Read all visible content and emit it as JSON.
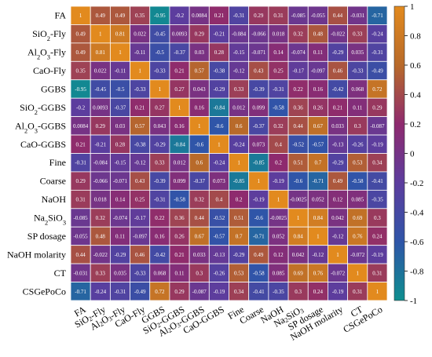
{
  "chart_data": {
    "type": "heatmap",
    "rows": [
      "FA",
      "SiO₂-Fly",
      "Al₂O₃-Fly",
      "CaO-Fly",
      "GGBS",
      "SiO₂-GGBS",
      "Al₂O₃-GGBS",
      "CaO-GGBS",
      "Fine",
      "Coarse",
      "NaOH",
      "Na₂SiO₃",
      "SP dosage",
      "NaOH molarity",
      "CT",
      "CSGePoCo"
    ],
    "columns": [
      "FA",
      "SiO₂-Fly",
      "Al₂O₃-Fly",
      "CaO-Fly",
      "GGBS",
      "SiO₂-GGBS",
      "Al₂O₃-GGBS",
      "CaO-GGBS",
      "Fine",
      "Coarse",
      "NaOH",
      "Na₂SiO₃",
      "SP dosage",
      "NaOH molarity",
      "CT",
      "CSGePoCo"
    ],
    "values": [
      [
        "1",
        "0.49",
        "0.49",
        "0.35",
        "-0.95",
        "-0.2",
        "0.0084",
        "0.21",
        "-0.31",
        "0.29",
        "0.31",
        "-0.085",
        "-0.055",
        "0.44",
        "-0.031",
        "-0.71"
      ],
      [
        "0.49",
        "1",
        "0.81",
        "0.022",
        "-0.45",
        "0.0093",
        "0.29",
        "-0.21",
        "-0.084",
        "-0.066",
        "0.018",
        "0.32",
        "0.48",
        "-0.022",
        "0.33",
        "-0.24"
      ],
      [
        "0.49",
        "0.81",
        "1",
        "-0.11",
        "-0.5",
        "-0.37",
        "0.03",
        "0.28",
        "-0.15",
        "-0.071",
        "0.14",
        "-0.074",
        "0.11",
        "-0.29",
        "0.035",
        "-0.31"
      ],
      [
        "0.35",
        "0.022",
        "-0.11",
        "1",
        "-0.33",
        "0.21",
        "0.57",
        "-0.38",
        "-0.12",
        "0.43",
        "0.25",
        "-0.17",
        "-0.097",
        "0.46",
        "-0.33",
        "-0.49"
      ],
      [
        "-0.95",
        "-0.45",
        "-0.5",
        "-0.33",
        "1",
        "0.27",
        "0.043",
        "-0.29",
        "0.33",
        "-0.39",
        "-0.31",
        "0.22",
        "0.16",
        "-0.42",
        "0.068",
        "0.72"
      ],
      [
        "-0.2",
        "0.0093",
        "-0.37",
        "0.21",
        "0.27",
        "1",
        "0.16",
        "-0.84",
        "0.012",
        "0.099",
        "-0.58",
        "0.36",
        "0.26",
        "0.21",
        "0.11",
        "0.29"
      ],
      [
        "0.0084",
        "0.29",
        "0.03",
        "0.57",
        "0.043",
        "0.16",
        "1",
        "-0.6",
        "0.6",
        "-0.37",
        "0.32",
        "0.44",
        "0.67",
        "0.033",
        "0.3",
        "-0.087"
      ],
      [
        "0.21",
        "-0.21",
        "0.28",
        "-0.38",
        "-0.29",
        "-0.84",
        "-0.6",
        "1",
        "-0.24",
        "0.073",
        "0.4",
        "-0.52",
        "-0.57",
        "-0.13",
        "-0.26",
        "-0.19"
      ],
      [
        "-0.31",
        "-0.084",
        "-0.15",
        "-0.12",
        "0.33",
        "0.012",
        "0.6",
        "-0.24",
        "1",
        "-0.85",
        "0.2",
        "0.51",
        "0.7",
        "-0.29",
        "0.53",
        "0.34"
      ],
      [
        "0.29",
        "-0.066",
        "-0.071",
        "0.43",
        "-0.39",
        "0.099",
        "-0.37",
        "0.073",
        "-0.85",
        "1",
        "-0.19",
        "-0.6",
        "-0.71",
        "0.49",
        "-0.58",
        "-0.41"
      ],
      [
        "0.31",
        "0.018",
        "0.14",
        "0.25",
        "-0.31",
        "-0.58",
        "0.32",
        "0.4",
        "0.2",
        "-0.19",
        "1",
        "-0.0025",
        "0.052",
        "0.12",
        "0.085",
        "-0.35"
      ],
      [
        "-0.085",
        "0.32",
        "-0.074",
        "-0.17",
        "0.22",
        "0.36",
        "0.44",
        "-0.52",
        "0.51",
        "-0.6",
        "-0.0025",
        "1",
        "0.84",
        "0.042",
        "0.69",
        "0.3"
      ],
      [
        "-0.055",
        "0.48",
        "0.11",
        "-0.097",
        "0.16",
        "0.26",
        "0.67",
        "-0.57",
        "0.7",
        "-0.71",
        "0.052",
        "0.84",
        "1",
        "-0.12",
        "0.76",
        "0.24"
      ],
      [
        "0.44",
        "-0.022",
        "-0.29",
        "0.46",
        "-0.42",
        "0.21",
        "0.033",
        "-0.13",
        "-0.29",
        "0.49",
        "0.12",
        "0.042",
        "-0.12",
        "1",
        "-0.072",
        "-0.19"
      ],
      [
        "-0.031",
        "0.33",
        "0.035",
        "-0.33",
        "0.068",
        "0.11",
        "0.3",
        "-0.26",
        "0.53",
        "-0.58",
        "0.085",
        "0.69",
        "0.76",
        "-0.072",
        "1",
        "0.31"
      ],
      [
        "-0.71",
        "-0.24",
        "-0.31",
        "-0.49",
        "0.72",
        "0.29",
        "-0.087",
        "-0.19",
        "0.34",
        "-0.41",
        "-0.35",
        "0.3",
        "0.24",
        "-0.19",
        "0.31",
        "1"
      ]
    ],
    "colorbar": {
      "range": [
        -1,
        1
      ],
      "ticks": [
        "1",
        "0.8",
        "0.6",
        "0.4",
        "0.2",
        "0",
        "-0.2",
        "-0.4",
        "-0.6",
        "-0.8",
        "-1"
      ],
      "colors": [
        "#0e8f8f",
        "#2f55a8",
        "#5c3d9e",
        "#8e2a6e",
        "#b86a2a",
        "#e28a1e"
      ]
    },
    "grid": true,
    "title": "",
    "xlabel": "",
    "ylabel": ""
  }
}
